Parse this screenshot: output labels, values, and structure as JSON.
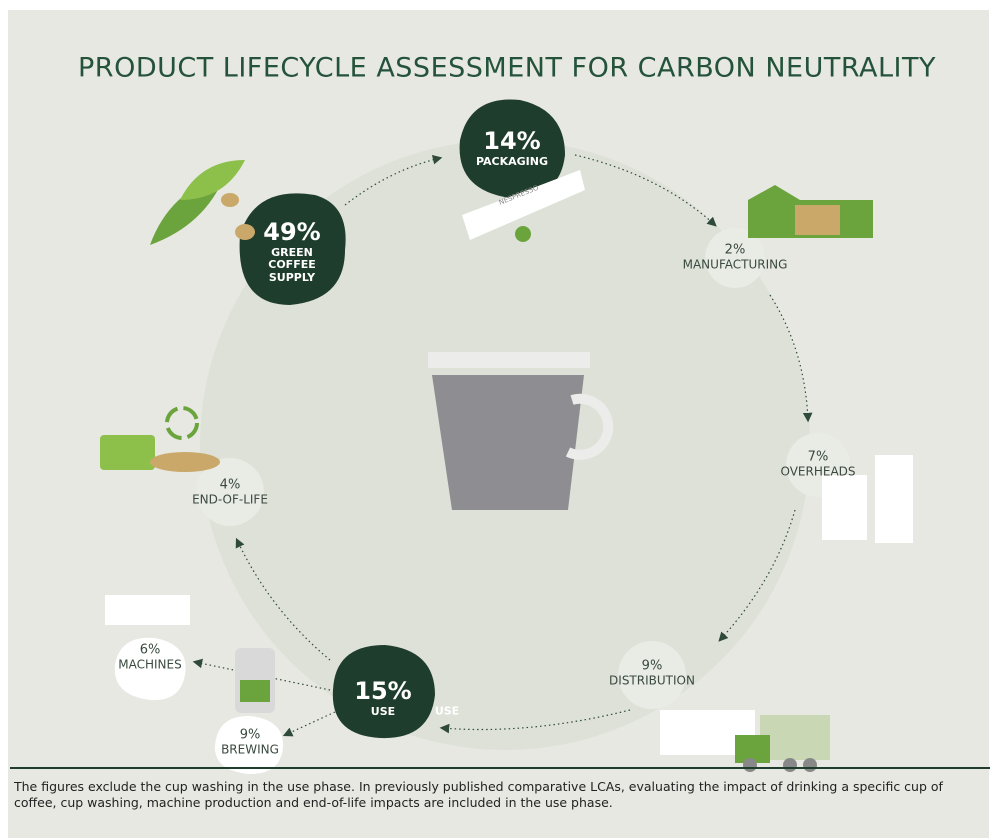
{
  "title": "PRODUCT LIFECYCLE ASSESSMENT FOR CARBON NEUTRALITY",
  "nodes": [
    {
      "value": "49%",
      "label": "GREEN COFFEE SUPPLY"
    },
    {
      "value": "14%",
      "label": "PACKAGING"
    },
    {
      "value": "2%",
      "label": "MANUFACTURING"
    },
    {
      "value": "7%",
      "label": "OVERHEADS"
    },
    {
      "value": "9%",
      "label": "DISTRIBUTION"
    },
    {
      "value": "15%",
      "label": "USE"
    },
    {
      "value": "9%",
      "label": "BREWING"
    },
    {
      "value": "6%",
      "label": "MACHINES"
    },
    {
      "value": "4%",
      "label": "END-OF-LIFE"
    }
  ],
  "arrow_label": "USE",
  "footnote": "The figures exclude the cup washing in the use phase. In previously published comparative LCAs, evaluating the impact of drinking a specific cup of coffee, cup washing, machine production and end-of-life impacts are included in the use phase."
}
